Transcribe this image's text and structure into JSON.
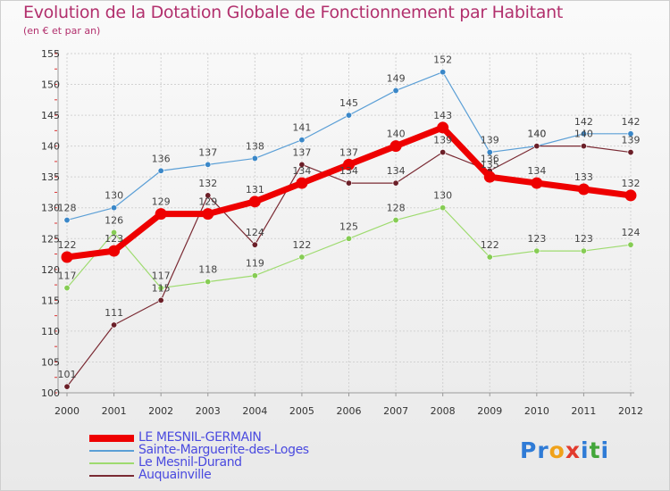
{
  "header": {
    "title": "Evolution de la Dotation Globale de Fonctionnement par Habitant",
    "subtitle": "(en € et par an)"
  },
  "chart_data": {
    "type": "line",
    "title": "Evolution de la Dotation Globale de Fonctionnement par Habitant",
    "subtitle": "(en € et par an)",
    "x": [
      2000,
      2001,
      2002,
      2003,
      2004,
      2005,
      2006,
      2007,
      2008,
      2009,
      2010,
      2011,
      2012
    ],
    "ylim": [
      100,
      155
    ],
    "yticks": [
      100,
      105,
      110,
      115,
      120,
      125,
      130,
      135,
      140,
      145,
      150,
      155
    ],
    "grid": true,
    "legend_position": "bottom",
    "series": [
      {
        "name": "Sainte-Marguerite-des-Loges",
        "color": "#5b9fd6",
        "point_color": "#3a87c8",
        "width": 1.2,
        "dot": 3.2,
        "values": [
          128,
          130,
          136,
          137,
          138,
          141,
          145,
          149,
          152,
          139,
          140,
          142,
          142
        ]
      },
      {
        "name": "Le Mesnil-Durand",
        "color": "#9edb6f",
        "point_color": "#86cc54",
        "width": 1.2,
        "dot": 3.2,
        "values": [
          117,
          126,
          117,
          118,
          119,
          122,
          125,
          128,
          130,
          122,
          123,
          123,
          124
        ]
      },
      {
        "name": "Auquainville",
        "color": "#7a2a33",
        "point_color": "#6b1f28",
        "width": 1.2,
        "dot": 3.2,
        "values": [
          101,
          111,
          115,
          132,
          124,
          137,
          134,
          134,
          139,
          136,
          140,
          140,
          139
        ]
      },
      {
        "name": "LE MESNIL-GERMAIN",
        "color": "#ee0000",
        "point_color": "#ee0000",
        "width": 7,
        "dot": 6.5,
        "values": [
          122,
          123,
          129,
          129,
          131,
          134,
          137,
          140,
          143,
          135,
          134,
          133,
          132
        ]
      }
    ]
  },
  "legend": {
    "items": [
      {
        "label": "LE MESNIL-GERMAIN",
        "color": "#ee0000",
        "thickness": 8
      },
      {
        "label": "Sainte-Marguerite-des-Loges",
        "color": "#5b9fd6",
        "thickness": 2
      },
      {
        "label": "Le Mesnil-Durand",
        "color": "#9edb6f",
        "thickness": 2
      },
      {
        "label": "Auquainville",
        "color": "#7a2a33",
        "thickness": 2
      }
    ]
  },
  "brand": {
    "letters": [
      {
        "ch": "P",
        "color": "#2f7bd6"
      },
      {
        "ch": "r",
        "color": "#2f7bd6"
      },
      {
        "ch": "o",
        "color": "#f0a21a"
      },
      {
        "ch": "x",
        "color": "#e23b2e"
      },
      {
        "ch": "i",
        "color": "#2f7bd6"
      },
      {
        "ch": "t",
        "color": "#43a63a"
      },
      {
        "ch": "i",
        "color": "#2f7bd6"
      }
    ]
  }
}
